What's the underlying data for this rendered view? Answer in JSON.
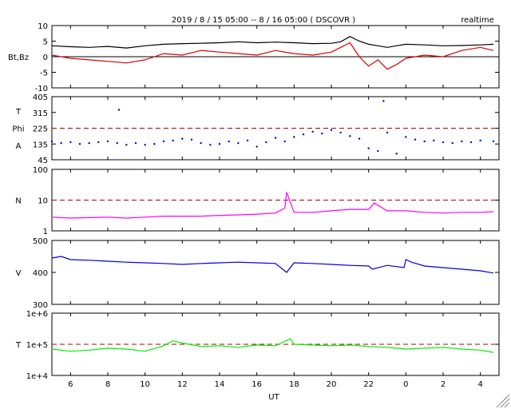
{
  "header": {
    "title": "2019 / 8 / 15   05:00 --  8 / 16   05:00 ( DSCOVR )",
    "mode": "realtime"
  },
  "xaxis": {
    "label": "UT",
    "range_hours": [
      5,
      29
    ],
    "tick_labels": [
      "6",
      "8",
      "10",
      "12",
      "14",
      "16",
      "18",
      "20",
      "22",
      "0",
      "2",
      "4"
    ],
    "tick_hours": [
      6,
      8,
      10,
      12,
      14,
      16,
      18,
      20,
      22,
      24,
      26,
      28
    ]
  },
  "chart_data": [
    {
      "type": "line",
      "panel": "magnetic-field",
      "ylabel": "Bt,Bz",
      "ylim": [
        -10,
        10
      ],
      "yticks": [
        "10",
        "5",
        "0",
        "-5",
        "-10"
      ],
      "ytick_values": [
        10,
        5,
        0,
        -5,
        -10
      ],
      "zero_line": 0,
      "series": [
        {
          "name": "Bt",
          "color": "#000000",
          "x": [
            5.0,
            6.0,
            7.0,
            8.0,
            9.0,
            10.0,
            11.0,
            12.0,
            13.0,
            14.0,
            15.0,
            16.0,
            17.0,
            18.0,
            19.0,
            20.0,
            20.5,
            21.0,
            21.5,
            22.0,
            22.5,
            23.0,
            23.5,
            24.0,
            25.0,
            26.0,
            27.0,
            28.0,
            28.7
          ],
          "values": [
            3.5,
            3.2,
            3.0,
            3.3,
            2.8,
            3.5,
            4.0,
            4.2,
            4.3,
            4.5,
            4.8,
            4.5,
            4.7,
            4.5,
            4.2,
            4.3,
            4.8,
            6.5,
            5.0,
            4.0,
            3.5,
            3.0,
            3.5,
            4.0,
            3.8,
            3.5,
            3.6,
            3.8,
            4.0
          ]
        },
        {
          "name": "Bz",
          "color": "#dd0000",
          "x": [
            5.0,
            6.0,
            7.0,
            8.0,
            9.0,
            10.0,
            11.0,
            12.0,
            13.0,
            14.0,
            15.0,
            16.0,
            17.0,
            18.0,
            19.0,
            20.0,
            20.5,
            21.0,
            21.5,
            22.0,
            22.5,
            23.0,
            23.5,
            24.0,
            25.0,
            26.0,
            27.0,
            28.0,
            28.7
          ],
          "values": [
            0.5,
            -0.5,
            -1.0,
            -1.5,
            -2.0,
            -1.0,
            1.0,
            0.5,
            2.0,
            1.5,
            1.0,
            0.5,
            2.0,
            1.0,
            0.5,
            1.5,
            3.0,
            4.5,
            0.0,
            -3.0,
            -1.0,
            -4.0,
            -2.5,
            -0.5,
            0.5,
            0.0,
            2.0,
            3.0,
            2.0
          ]
        }
      ]
    },
    {
      "type": "scatter",
      "panel": "phi-angle",
      "ylabels": [
        "T",
        "Phi",
        "A"
      ],
      "ylim": [
        45,
        405
      ],
      "yticks": [
        "405",
        "315",
        "225",
        "135",
        "45"
      ],
      "ytick_values": [
        405,
        315,
        225,
        135,
        45
      ],
      "reference_line": 225,
      "series": [
        {
          "name": "Phi",
          "color": "#0000cc",
          "x": [
            5.0,
            5.5,
            6.0,
            6.5,
            7.0,
            7.5,
            8.0,
            8.5,
            8.6,
            9.0,
            9.5,
            10.0,
            10.5,
            11.0,
            11.5,
            12.0,
            12.5,
            13.0,
            13.5,
            14.0,
            14.5,
            15.0,
            15.5,
            16.0,
            16.5,
            17.0,
            17.5,
            18.0,
            18.5,
            19.0,
            19.5,
            20.0,
            20.5,
            21.0,
            21.5,
            22.0,
            22.5,
            22.8,
            23.0,
            23.5,
            24.0,
            24.5,
            25.0,
            25.5,
            26.0,
            26.5,
            27.0,
            27.5,
            28.0,
            28.7
          ],
          "values": [
            150,
            140,
            145,
            135,
            140,
            145,
            150,
            140,
            330,
            130,
            140,
            130,
            135,
            150,
            155,
            165,
            160,
            140,
            130,
            135,
            150,
            140,
            155,
            120,
            145,
            170,
            150,
            175,
            190,
            205,
            195,
            215,
            200,
            180,
            165,
            110,
            95,
            380,
            200,
            80,
            175,
            160,
            150,
            155,
            145,
            140,
            150,
            145,
            155,
            150
          ]
        }
      ]
    },
    {
      "type": "line",
      "panel": "density",
      "ylabel": "N",
      "yscale": "log",
      "ylim": [
        1,
        100
      ],
      "yticks": [
        "100",
        "10",
        "1"
      ],
      "ytick_values": [
        100,
        10,
        1
      ],
      "reference_line": 10,
      "series": [
        {
          "name": "N",
          "color": "#ff00ff",
          "x": [
            5.0,
            6.0,
            7.0,
            8.0,
            9.0,
            10.0,
            11.0,
            12.0,
            13.0,
            14.0,
            15.0,
            16.0,
            17.0,
            17.5,
            17.6,
            18.0,
            19.0,
            20.0,
            21.0,
            22.0,
            22.3,
            23.0,
            24.0,
            25.0,
            26.0,
            27.0,
            28.0,
            28.7
          ],
          "values": [
            2.8,
            2.6,
            2.7,
            2.8,
            2.6,
            2.8,
            3.0,
            3.0,
            3.0,
            3.2,
            3.3,
            3.5,
            3.8,
            5.5,
            18.0,
            4.0,
            4.0,
            4.5,
            5.0,
            5.0,
            8.0,
            4.5,
            4.5,
            4.0,
            3.8,
            4.0,
            4.0,
            4.2
          ]
        }
      ]
    },
    {
      "type": "line",
      "panel": "speed",
      "ylabel": "V",
      "ylim": [
        300,
        500
      ],
      "yticks": [
        "500",
        "400",
        "300"
      ],
      "ytick_values": [
        500,
        400,
        300
      ],
      "series": [
        {
          "name": "V",
          "color": "#0000dd",
          "x": [
            5.0,
            5.5,
            6.0,
            7.0,
            8.0,
            9.0,
            10.0,
            11.0,
            12.0,
            13.0,
            14.0,
            15.0,
            16.0,
            17.0,
            17.6,
            18.0,
            19.0,
            20.0,
            21.0,
            22.0,
            22.2,
            23.0,
            23.9,
            24.0,
            24.3,
            25.0,
            26.0,
            27.0,
            28.0,
            28.7
          ],
          "values": [
            445,
            450,
            440,
            438,
            435,
            432,
            430,
            428,
            425,
            428,
            430,
            432,
            430,
            428,
            400,
            430,
            428,
            425,
            422,
            420,
            410,
            422,
            415,
            440,
            432,
            420,
            415,
            410,
            405,
            398
          ]
        }
      ]
    },
    {
      "type": "line",
      "panel": "temperature",
      "ylabel": "T",
      "yscale": "log",
      "ylim": [
        10000,
        1000000
      ],
      "yticks": [
        "1e+6",
        "1e+5",
        "1e+4"
      ],
      "ytick_values": [
        1000000,
        100000,
        10000
      ],
      "reference_line": 100000,
      "series": [
        {
          "name": "T",
          "color": "#00ee00",
          "x": [
            5.0,
            6.0,
            7.0,
            8.0,
            9.0,
            10.0,
            11.0,
            11.5,
            12.0,
            13.0,
            14.0,
            15.0,
            16.0,
            17.0,
            17.8,
            18.0,
            19.0,
            20.0,
            21.0,
            22.0,
            23.0,
            24.0,
            25.0,
            26.0,
            27.0,
            28.0,
            28.7
          ],
          "values": [
            70000,
            60000,
            65000,
            75000,
            70000,
            60000,
            90000,
            130000,
            110000,
            85000,
            90000,
            80000,
            95000,
            90000,
            150000,
            100000,
            95000,
            90000,
            95000,
            85000,
            80000,
            70000,
            75000,
            80000,
            70000,
            65000,
            55000
          ]
        }
      ]
    }
  ]
}
